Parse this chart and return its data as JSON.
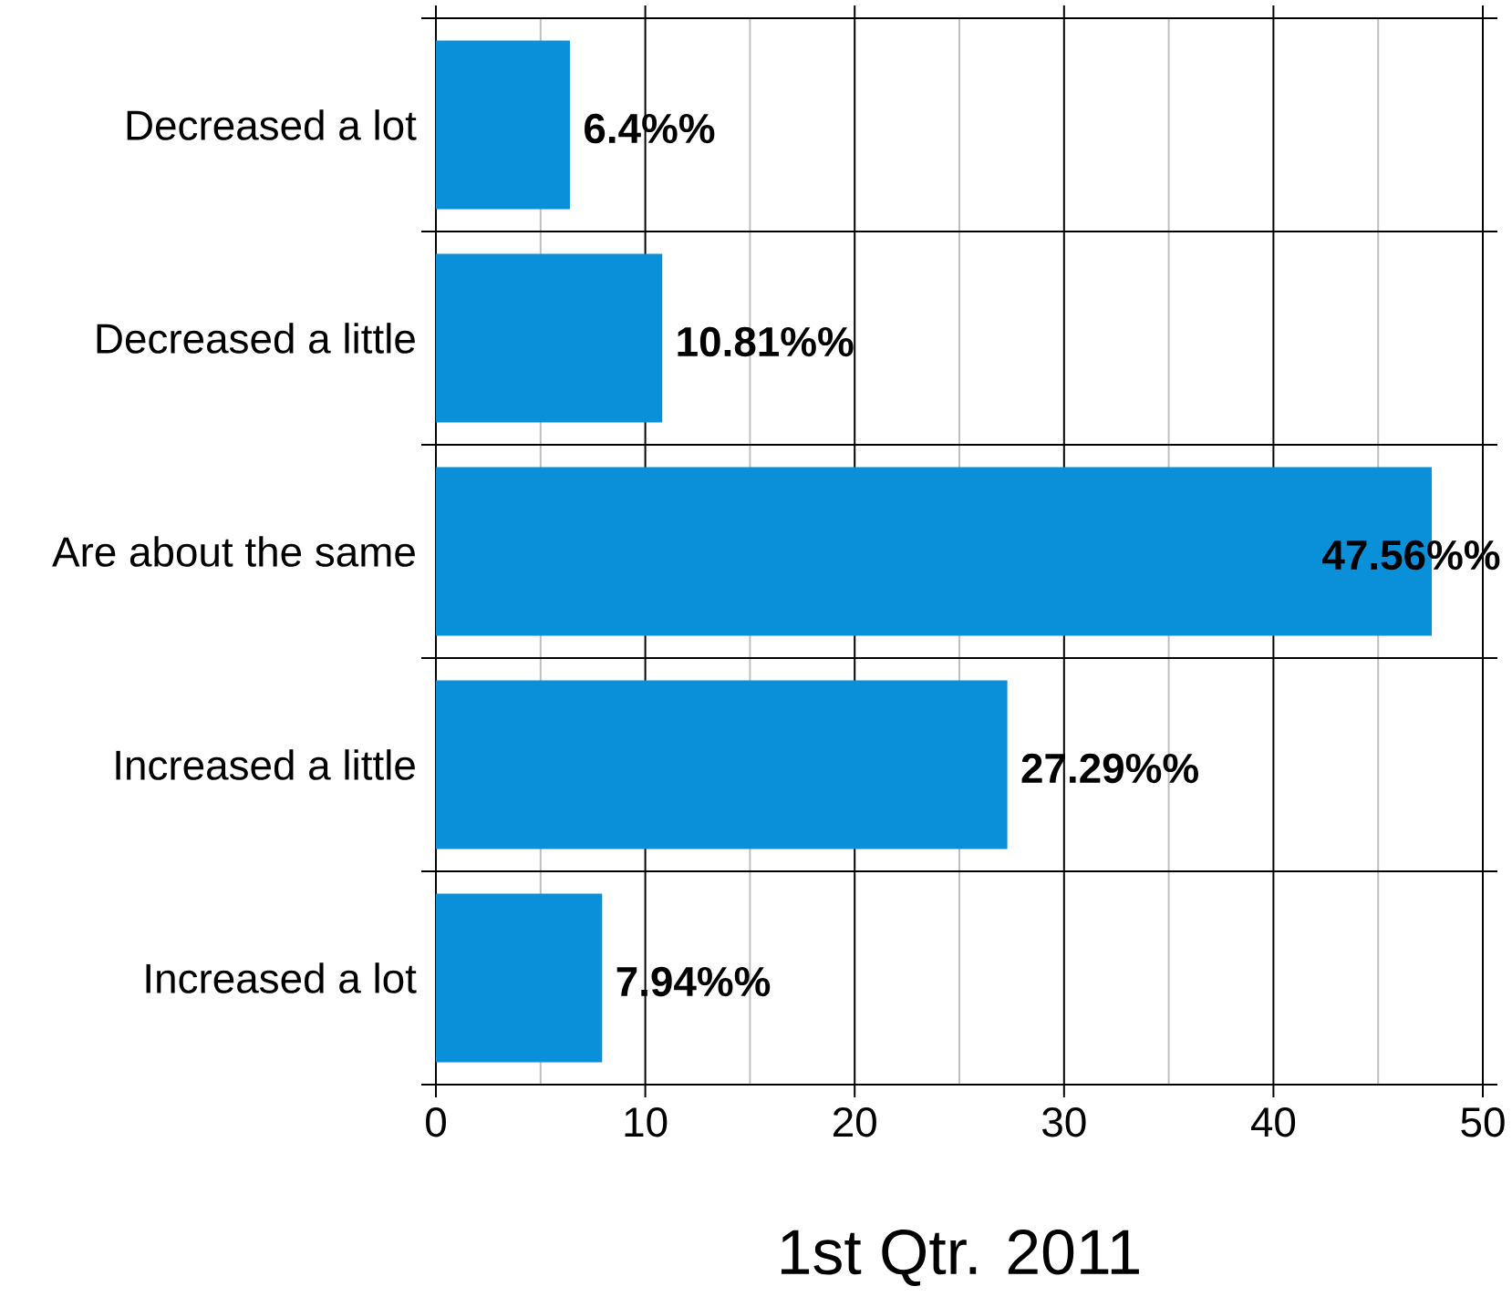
{
  "chart_data": {
    "type": "bar",
    "orientation": "horizontal",
    "categories": [
      "Decreased a lot",
      "Decreased a little",
      "Are about the same",
      "Increased a little",
      "Increased a lot"
    ],
    "values": [
      6.4,
      10.81,
      47.56,
      27.29,
      7.94
    ],
    "value_labels": [
      "6.4%%",
      "10.81%%",
      "47.56%%",
      "27.29%%",
      "7.94%%"
    ],
    "color": "#0a90d8",
    "xlim": [
      0,
      50
    ],
    "xticks": [
      0,
      {
        "value": 5,
        "label": null
      },
      10,
      {
        "value": 15,
        "label": null
      },
      20,
      {
        "value": 25,
        "label": null
      },
      30,
      {
        "value": 35,
        "label": null
      },
      40,
      {
        "value": 45,
        "label": null
      },
      50
    ],
    "xlabel": "1st Qtr. 2011",
    "grid": true
  }
}
